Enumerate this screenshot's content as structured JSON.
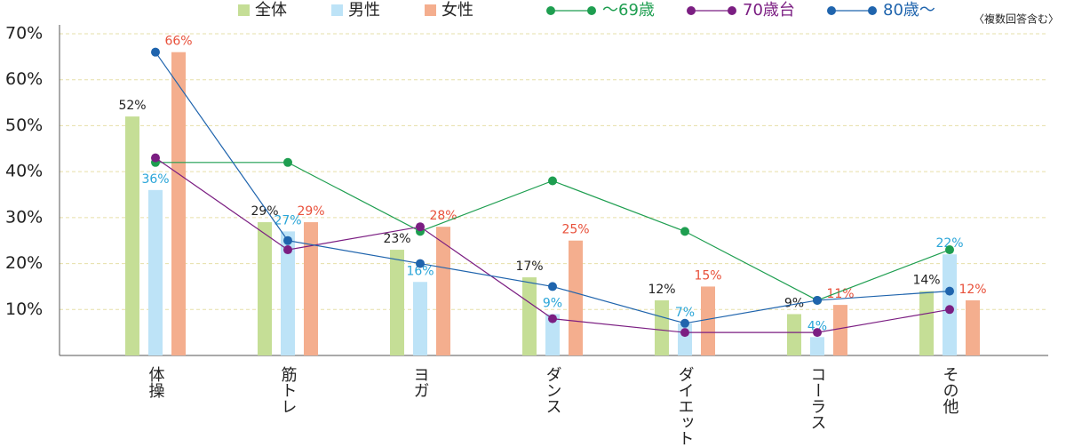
{
  "chart_data": {
    "type": "bar-line",
    "annotation": "〈複数回答含む〉",
    "categories": [
      "体操",
      "筋トレ",
      "ヨガ",
      "ダンス",
      "ダイエット",
      "コーラス",
      "その他"
    ],
    "series": [
      {
        "name": "全体",
        "kind": "bar",
        "color": "#c5de96",
        "label_color": "#222222",
        "values": [
          52,
          29,
          23,
          17,
          12,
          9,
          14
        ],
        "value_labels": [
          "52%",
          "29%",
          "23%",
          "17%",
          "12%",
          "9%",
          "14%"
        ]
      },
      {
        "name": "男性",
        "kind": "bar",
        "color": "#bde3f7",
        "label_color": "#2aa5d8",
        "values": [
          36,
          27,
          16,
          9,
          7,
          4,
          22
        ],
        "value_labels": [
          "36%",
          "27%",
          "16%",
          "9%",
          "7%",
          "4%",
          "22%"
        ]
      },
      {
        "name": "女性",
        "kind": "bar",
        "color": "#f4ae8e",
        "label_color": "#e8503a",
        "values": [
          66,
          29,
          28,
          25,
          15,
          11,
          12
        ],
        "value_labels": [
          "66%",
          "29%",
          "28%",
          "25%",
          "15%",
          "11%",
          "12%"
        ]
      },
      {
        "name": "～69歳",
        "kind": "line",
        "color": "#1e9e50",
        "values": [
          42,
          42,
          27,
          38,
          27,
          12,
          23
        ]
      },
      {
        "name": "70歳台",
        "kind": "line",
        "color": "#7b1e82",
        "values": [
          43,
          23,
          28,
          8,
          5,
          5,
          10
        ]
      },
      {
        "name": "80歳～",
        "kind": "line",
        "color": "#1f64ad",
        "values": [
          66,
          25,
          20,
          15,
          7,
          12,
          14
        ]
      }
    ],
    "ylim": [
      0,
      70
    ],
    "yticks": [
      {
        "value": 10,
        "label": "10%"
      },
      {
        "value": 20,
        "label": "20%"
      },
      {
        "value": 30,
        "label": "30%"
      },
      {
        "value": 40,
        "label": "40%"
      },
      {
        "value": 50,
        "label": "50%"
      },
      {
        "value": 60,
        "label": "60%"
      },
      {
        "value": 70,
        "label": "70%"
      }
    ],
    "grid": true
  }
}
